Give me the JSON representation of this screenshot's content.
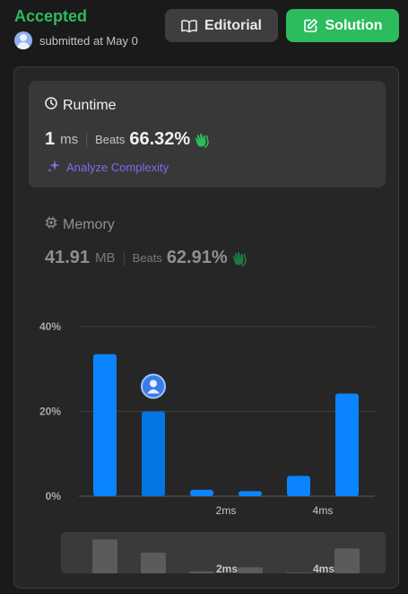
{
  "header": {
    "status": "Accepted",
    "submitted_text": "submitted at May 0",
    "editorial_label": "Editorial",
    "solution_label": "Solution"
  },
  "runtime": {
    "title": "Runtime",
    "value": "1",
    "unit": "ms",
    "beats_label": "Beats",
    "beats_value": "66.32%",
    "analyze_label": "Analyze Complexity"
  },
  "memory": {
    "title": "Memory",
    "value": "41.91",
    "unit": "MB",
    "beats_label": "Beats",
    "beats_value": "62.91%"
  },
  "colors": {
    "accepted": "#2cbb5d",
    "bar": "#0a84ff",
    "bar_selected": "#0575e6",
    "analyze": "#7b6cf0"
  },
  "chart_data": {
    "type": "bar",
    "y_tick_labels": [
      "40%",
      "20%",
      "0%"
    ],
    "ylim": [
      0,
      40
    ],
    "x_tick_labels": [
      {
        "label": "2ms",
        "at_bar": 2.5
      },
      {
        "label": "4ms",
        "at_bar": 4.5
      }
    ],
    "values": [
      33.5,
      20.0,
      1.5,
      1.2,
      4.8,
      24.2
    ],
    "selected_index": 1,
    "overview": {
      "values": [
        9.0,
        5.5,
        0.5,
        1.6,
        0.2,
        6.6
      ],
      "x_tick_labels": [
        "2ms",
        "4ms"
      ]
    }
  }
}
